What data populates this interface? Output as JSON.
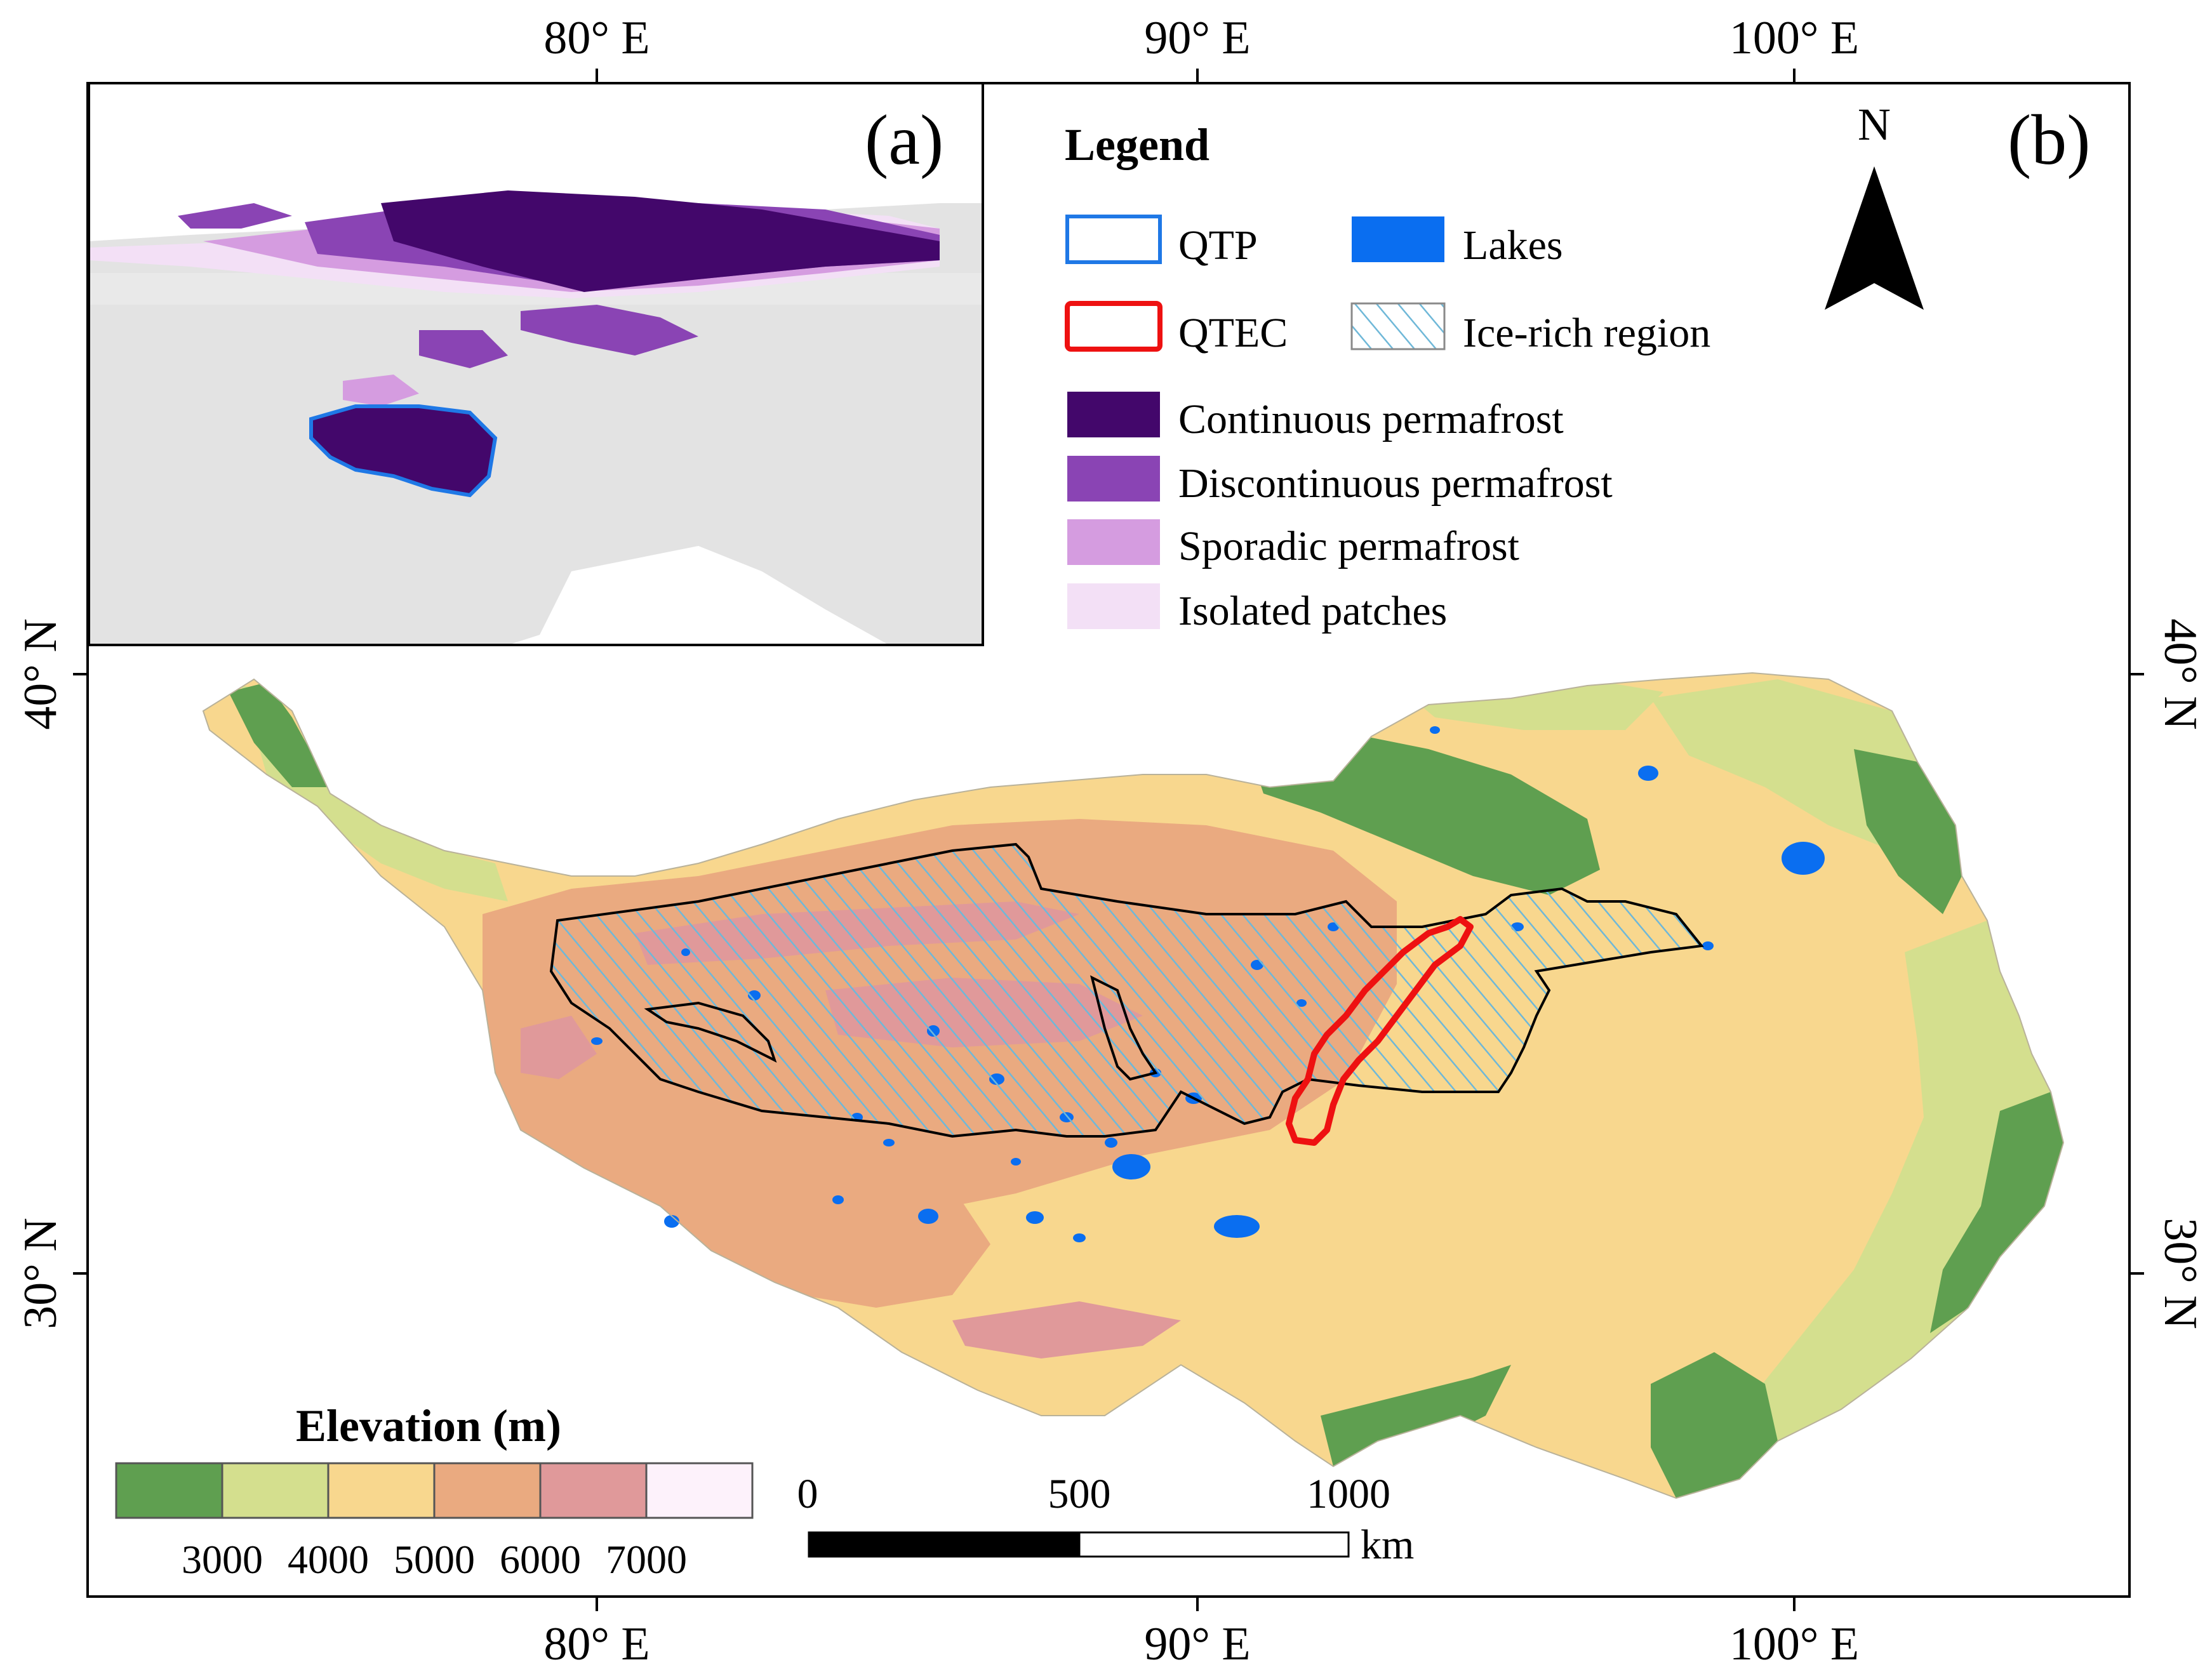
{
  "panel_a_label": "(a)",
  "panel_b_label": "(b)",
  "north_arrow": {
    "label": "N",
    "icon": "north-arrow-icon"
  },
  "axes": {
    "top": [
      "80° E",
      "90° E",
      "100° E"
    ],
    "bottom": [
      "80° E",
      "90° E",
      "100° E"
    ],
    "left": [
      "40° N",
      "30° N"
    ],
    "right": [
      "40° N",
      "30° N"
    ]
  },
  "legend": {
    "title": "Legend",
    "items": [
      {
        "label": "QTP",
        "style": "outline",
        "color": "#1f78e6"
      },
      {
        "label": "Lakes",
        "style": "fill",
        "color": "#0a6ef0"
      },
      {
        "label": "QTEC",
        "style": "outline",
        "color": "#ee1111"
      },
      {
        "label": "Ice-rich region",
        "style": "hatch",
        "color": "#6fb8d8"
      },
      {
        "label": "Continuous permafrost",
        "style": "fill",
        "color": "#43076b"
      },
      {
        "label": "Discontinuous permafrost",
        "style": "fill",
        "color": "#8a44b4"
      },
      {
        "label": "Sporadic permafrost",
        "style": "fill",
        "color": "#d59ce0"
      },
      {
        "label": "Isolated patches",
        "style": "fill",
        "color": "#f3e0f6"
      }
    ]
  },
  "elevation": {
    "title": "Elevation (m)",
    "colors": [
      "#5f9f50",
      "#d4df8e",
      "#f8d78e",
      "#eaaa80",
      "#e0999a",
      "#fdf2fb"
    ],
    "ticks": [
      "3000",
      "4000",
      "5000",
      "6000",
      "7000"
    ]
  },
  "scale_bar": {
    "labels": [
      "0",
      "500",
      "1000"
    ],
    "unit": "km"
  },
  "colors": {
    "frame": "#000000",
    "land_gray": "#e3e3e3",
    "qtp_outline": "#1f78e6",
    "qtec_outline": "#ee1111",
    "ice_rich_hatch": "#6fb8d8",
    "lakes": "#0a6ef0"
  }
}
